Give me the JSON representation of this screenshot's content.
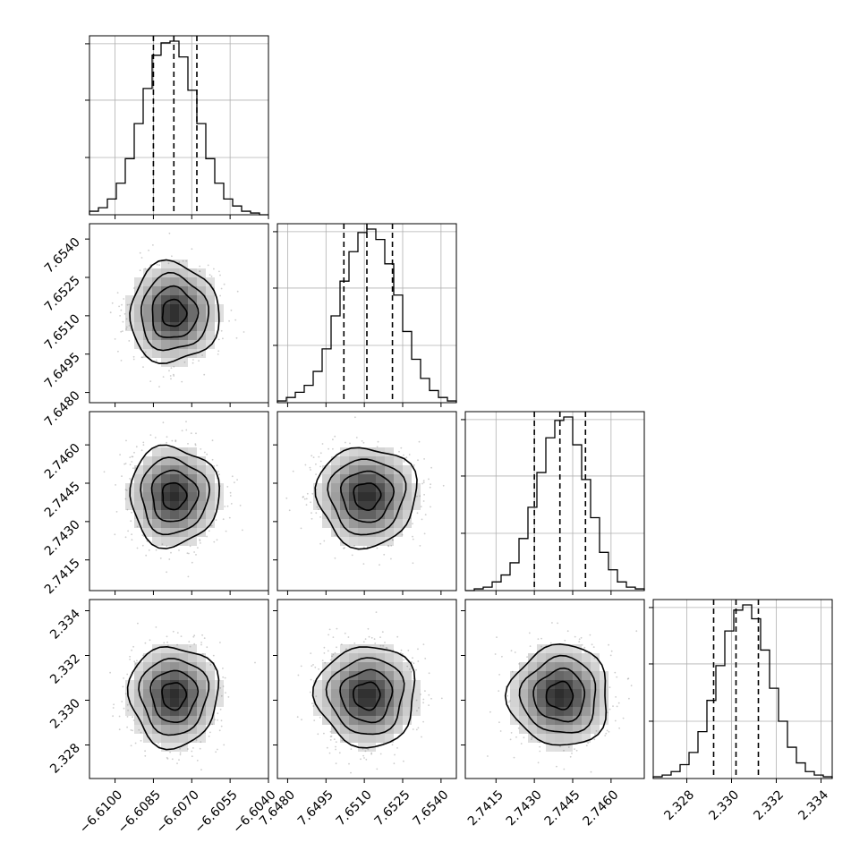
{
  "chart_data": {
    "type": "corner",
    "description_free": true,
    "parameters": [
      {
        "index": 0,
        "range": [
          -6.611,
          -6.604
        ],
        "ticks": [
          -6.61,
          -6.6085,
          -6.607,
          -6.6055,
          -6.604
        ],
        "tick_labels": [
          "−6.6100",
          "−6.6085",
          "−6.6070",
          "−6.6055",
          "−6.6040"
        ],
        "quantiles": [
          -6.6085,
          -6.6077,
          -6.6068
        ],
        "hist": [
          0.02,
          0.04,
          0.09,
          0.18,
          0.32,
          0.52,
          0.72,
          0.91,
          0.98,
          0.99,
          0.9,
          0.71,
          0.52,
          0.32,
          0.18,
          0.09,
          0.05,
          0.02,
          0.01,
          0.0
        ],
        "mean": -6.6077,
        "sd": 0.00085
      },
      {
        "index": 1,
        "range": [
          7.6476,
          7.6546
        ],
        "ticks": [
          7.648,
          7.6495,
          7.651,
          7.6525,
          7.654
        ],
        "tick_labels": [
          "7.6480",
          "7.6495",
          "7.6510",
          "7.6525",
          "7.6540"
        ],
        "quantiles": [
          7.6502,
          7.6511,
          7.6521
        ],
        "hist": [
          0.01,
          0.03,
          0.06,
          0.1,
          0.18,
          0.31,
          0.5,
          0.7,
          0.87,
          0.98,
          1.0,
          0.94,
          0.8,
          0.62,
          0.41,
          0.25,
          0.14,
          0.07,
          0.03,
          0.01
        ],
        "mean": 7.6511,
        "sd": 0.00095
      },
      {
        "index": 2,
        "range": [
          2.7403,
          2.7473
        ],
        "ticks": [
          2.7415,
          2.743,
          2.7445,
          2.746
        ],
        "tick_labels": [
          "2.7415",
          "2.7430",
          "2.7445",
          "2.7460"
        ],
        "quantiles": [
          2.743,
          2.744,
          2.745
        ],
        "hist": [
          0.0,
          0.01,
          0.02,
          0.05,
          0.09,
          0.16,
          0.3,
          0.48,
          0.68,
          0.88,
          0.98,
          1.0,
          0.84,
          0.64,
          0.42,
          0.22,
          0.12,
          0.05,
          0.02,
          0.01
        ],
        "mean": 2.744,
        "sd": 0.00095
      },
      {
        "index": 3,
        "range": [
          2.3265,
          2.3345
        ],
        "ticks": [
          2.328,
          2.33,
          2.332,
          2.334
        ],
        "tick_labels": [
          "2.328",
          "2.330",
          "2.332",
          "2.334"
        ],
        "quantiles": [
          2.3292,
          2.3302,
          2.3312
        ],
        "hist": [
          0.01,
          0.02,
          0.04,
          0.08,
          0.15,
          0.27,
          0.45,
          0.65,
          0.85,
          0.97,
          1.0,
          0.92,
          0.74,
          0.52,
          0.33,
          0.18,
          0.09,
          0.04,
          0.02,
          0.01
        ],
        "mean": 2.3302,
        "sd": 0.0011
      }
    ],
    "grid": true,
    "contour_levels": 4,
    "x_axis_labels_shown_on": "bottom row",
    "y_axis_labels_shown_on": "left column"
  }
}
